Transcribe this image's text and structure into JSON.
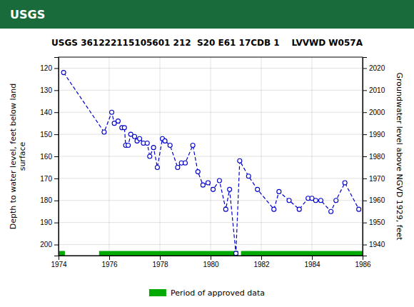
{
  "chart_data": {
    "type": "line",
    "title": "USGS 361222115105601 212  S20 E61 17CDB 1    LVVWD W057A",
    "header": {
      "text": "USGS",
      "color": "#1a6b3c"
    },
    "ylabel": "Depth to water level, feet below land\nsurface",
    "y2label": "Groundwater level above NGVD 1929, feet",
    "xlim": [
      1974,
      1986
    ],
    "ylim": [
      205,
      115
    ],
    "y2lim": [
      1935,
      2025
    ],
    "xticks": [
      1974,
      1976,
      1978,
      1980,
      1982,
      1984,
      1986
    ],
    "yticks": [
      120,
      130,
      140,
      150,
      160,
      170,
      180,
      190,
      200
    ],
    "y2ticks": [
      1940,
      1950,
      1960,
      1970,
      1980,
      1990,
      2000,
      2010,
      2020
    ],
    "grid": true,
    "legend": "bottom",
    "color": "#0000cc",
    "marker": "open-circle",
    "line_style": "dashed",
    "x": [
      1974.2,
      1975.8,
      1976.1,
      1976.2,
      1976.35,
      1976.5,
      1976.6,
      1976.65,
      1976.75,
      1976.85,
      1977.0,
      1977.1,
      1977.2,
      1977.35,
      1977.5,
      1977.6,
      1977.75,
      1977.9,
      1978.1,
      1978.2,
      1978.4,
      1978.7,
      1978.85,
      1979.0,
      1979.3,
      1979.5,
      1979.7,
      1979.9,
      1980.1,
      1980.35,
      1980.6,
      1980.75,
      1981.0,
      1981.15,
      1981.5,
      1981.85,
      1982.5,
      1982.7,
      1983.1,
      1983.5,
      1983.85,
      1984.0,
      1984.15,
      1984.35,
      1984.75,
      1984.95,
      1985.3,
      1985.85
    ],
    "values": [
      122,
      149,
      140,
      145,
      144,
      147,
      147,
      155,
      155,
      150,
      151,
      153,
      152,
      154,
      154,
      160,
      156,
      165,
      152,
      153,
      155,
      165,
      163,
      163,
      155,
      167,
      173,
      172,
      175,
      171,
      184,
      175,
      204,
      162,
      169,
      175,
      184,
      176,
      180,
      184,
      179,
      179,
      180,
      180,
      185,
      180,
      172,
      184
    ],
    "periods": {
      "name": "Period of approved data",
      "color": "#00aa00",
      "start": [
        1974.0,
        1975.6,
        1981.2
      ],
      "end": [
        1974.25,
        1981.1,
        1986.1
      ],
      "level": 204.2
    }
  }
}
